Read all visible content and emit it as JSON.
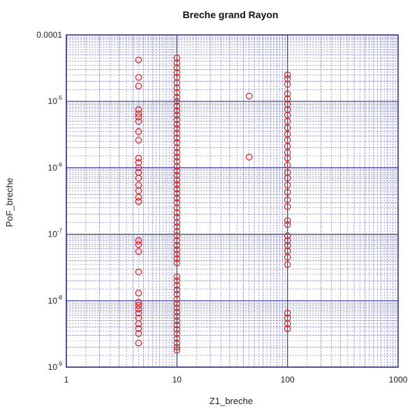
{
  "chart_data": {
    "type": "scatter",
    "title": "Breche grand Rayon",
    "xlabel": "Z1_breche",
    "ylabel": "PoF_breche",
    "xscale": "log",
    "yscale": "log",
    "xlim": [
      1,
      1000
    ],
    "ylim": [
      1e-09,
      0.0001
    ],
    "x_ticks": [
      {
        "value": 1,
        "label": "1"
      },
      {
        "value": 10,
        "label": "10"
      },
      {
        "value": 100,
        "label": "100"
      },
      {
        "value": 1000,
        "label": "1000"
      }
    ],
    "y_ticks": [
      {
        "value": 0.0001,
        "label": "0.0001"
      },
      {
        "value": 1e-05,
        "base": "10",
        "exp": "-5"
      },
      {
        "value": 1e-06,
        "base": "10",
        "exp": "-6"
      },
      {
        "value": 1e-07,
        "base": "10",
        "exp": "-7"
      },
      {
        "value": 1e-08,
        "base": "10",
        "exp": "-8"
      },
      {
        "value": 1e-09,
        "base": "10",
        "exp": "-9"
      }
    ],
    "grid": true,
    "colors": {
      "marker": "#cc2222",
      "grid_major": "#3a3a9a",
      "grid_minor": "#6c6cbc",
      "frame": "#2a2a7a"
    },
    "marker": "open-circle",
    "series": [
      {
        "points": [
          [
            4.5,
            4.2e-05
          ],
          [
            4.5,
            2.3e-05
          ],
          [
            4.5,
            1.7e-05
          ],
          [
            4.5,
            7.5e-06
          ],
          [
            4.5,
            6.5e-06
          ],
          [
            4.5,
            5.8e-06
          ],
          [
            4.5,
            5e-06
          ],
          [
            4.5,
            3.5e-06
          ],
          [
            4.5,
            2.6e-06
          ],
          [
            4.5,
            1.4e-06
          ],
          [
            4.5,
            1.2e-06
          ],
          [
            4.5,
            1e-06
          ],
          [
            4.5,
            8.5e-07
          ],
          [
            4.5,
            7e-07
          ],
          [
            4.5,
            5.5e-07
          ],
          [
            4.5,
            4.5e-07
          ],
          [
            4.5,
            3.6e-07
          ],
          [
            4.5,
            3.1e-07
          ],
          [
            4.5,
            8e-08
          ],
          [
            4.5,
            7e-08
          ],
          [
            4.5,
            5.5e-08
          ],
          [
            4.5,
            2.7e-08
          ],
          [
            4.5,
            1.3e-08
          ],
          [
            4.5,
            9.5e-09
          ],
          [
            4.5,
            8.5e-09
          ],
          [
            4.5,
            7.5e-09
          ],
          [
            4.5,
            6.5e-09
          ],
          [
            4.5,
            5.5e-09
          ],
          [
            4.5,
            4.5e-09
          ],
          [
            4.5,
            3.8e-09
          ],
          [
            4.5,
            3.2e-09
          ],
          [
            4.5,
            2.3e-09
          ],
          [
            10,
            4.5e-05
          ],
          [
            10,
            3.8e-05
          ],
          [
            10,
            3.2e-05
          ],
          [
            10,
            2.7e-05
          ],
          [
            10,
            2.3e-05
          ],
          [
            10,
            1.9e-05
          ],
          [
            10,
            1.6e-05
          ],
          [
            10,
            1.35e-05
          ],
          [
            10,
            1.15e-05
          ],
          [
            10,
            1e-05
          ],
          [
            10,
            8.5e-06
          ],
          [
            10,
            7.2e-06
          ],
          [
            10,
            6.2e-06
          ],
          [
            10,
            5.3e-06
          ],
          [
            10,
            4.5e-06
          ],
          [
            10,
            3.9e-06
          ],
          [
            10,
            3.3e-06
          ],
          [
            10,
            2.8e-06
          ],
          [
            10,
            2.4e-06
          ],
          [
            10,
            2e-06
          ],
          [
            10,
            1.7e-06
          ],
          [
            10,
            1.45e-06
          ],
          [
            10,
            1.25e-06
          ],
          [
            10,
            1.05e-06
          ],
          [
            10,
            9e-07
          ],
          [
            10,
            7.7e-07
          ],
          [
            10,
            6.5e-07
          ],
          [
            10,
            5.6e-07
          ],
          [
            10,
            4.8e-07
          ],
          [
            10,
            4.1e-07
          ],
          [
            10,
            3.5e-07
          ],
          [
            10,
            3e-07
          ],
          [
            10,
            2.5e-07
          ],
          [
            10,
            2.1e-07
          ],
          [
            10,
            1.8e-07
          ],
          [
            10,
            1.5e-07
          ],
          [
            10,
            1.3e-07
          ],
          [
            10,
            1.1e-07
          ],
          [
            10,
            9.5e-08
          ],
          [
            10,
            8e-08
          ],
          [
            10,
            6.8e-08
          ],
          [
            10,
            5.8e-08
          ],
          [
            10,
            5e-08
          ],
          [
            10,
            4.3e-08
          ],
          [
            10,
            3.7e-08
          ],
          [
            10,
            2.3e-08
          ],
          [
            10,
            2e-08
          ],
          [
            10,
            1.7e-08
          ],
          [
            10,
            1.45e-08
          ],
          [
            10,
            1.25e-08
          ],
          [
            10,
            1.05e-08
          ],
          [
            10,
            9e-09
          ],
          [
            10,
            7.8e-09
          ],
          [
            10,
            6.7e-09
          ],
          [
            10,
            5.8e-09
          ],
          [
            10,
            5e-09
          ],
          [
            10,
            4.3e-09
          ],
          [
            10,
            3.7e-09
          ],
          [
            10,
            3.2e-09
          ],
          [
            10,
            2.7e-09
          ],
          [
            10,
            2.3e-09
          ],
          [
            10,
            2e-09
          ],
          [
            10,
            1.8e-09
          ],
          [
            45,
            1.2e-05
          ],
          [
            45,
            1.45e-06
          ],
          [
            100,
            2.5e-05
          ],
          [
            100,
            2.2e-05
          ],
          [
            100,
            1.8e-05
          ],
          [
            100,
            1.3e-05
          ],
          [
            100,
            1.1e-05
          ],
          [
            100,
            9e-06
          ],
          [
            100,
            7.5e-06
          ],
          [
            100,
            6.2e-06
          ],
          [
            100,
            5e-06
          ],
          [
            100,
            4e-06
          ],
          [
            100,
            3.2e-06
          ],
          [
            100,
            2.6e-06
          ],
          [
            100,
            2.1e-06
          ],
          [
            100,
            1.7e-06
          ],
          [
            100,
            1.4e-06
          ],
          [
            100,
            1.1e-06
          ],
          [
            100,
            8.5e-07
          ],
          [
            100,
            7e-07
          ],
          [
            100,
            5.5e-07
          ],
          [
            100,
            4.3e-07
          ],
          [
            100,
            3.3e-07
          ],
          [
            100,
            2.6e-07
          ],
          [
            100,
            1.6e-07
          ],
          [
            100,
            1.4e-07
          ],
          [
            100,
            9.5e-08
          ],
          [
            100,
            8e-08
          ],
          [
            100,
            6.8e-08
          ],
          [
            100,
            5.6e-08
          ],
          [
            100,
            4.5e-08
          ],
          [
            100,
            3.5e-08
          ],
          [
            100,
            6.5e-09
          ],
          [
            100,
            5.5e-09
          ],
          [
            100,
            4.5e-09
          ],
          [
            100,
            3.8e-09
          ]
        ]
      }
    ]
  }
}
